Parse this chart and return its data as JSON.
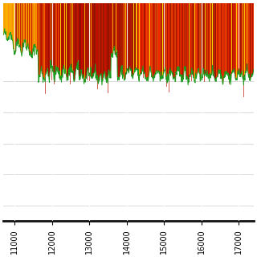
{
  "x_min": 10700,
  "x_max": 17400,
  "y_min": -1.8,
  "y_max": 1.0,
  "xticks": [
    11000,
    12000,
    13000,
    14000,
    15000,
    16000,
    17000
  ],
  "background_color": "#ffffff",
  "num_bars": 600,
  "seed": 42,
  "figsize": [
    3.2,
    3.2
  ],
  "dpi": 100,
  "bar_top": 1.0
}
